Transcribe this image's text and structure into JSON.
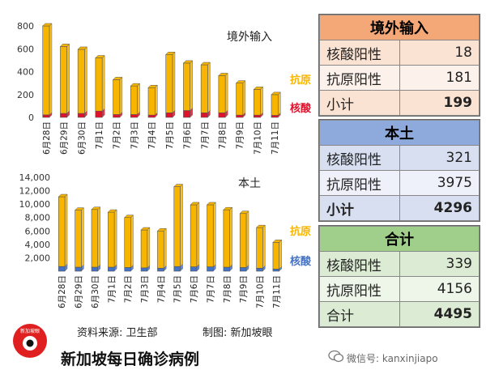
{
  "chart_data": [
    {
      "type": "bar",
      "stacked": true,
      "title": "境外输入",
      "categories": [
        "6月28日",
        "6月29日",
        "6月30日",
        "7月1日",
        "7月2日",
        "7月3日",
        "7月4日",
        "7月5日",
        "7月6日",
        "7月7日",
        "7月8日",
        "7月9日",
        "7月10日",
        "7月11日"
      ],
      "series": [
        {
          "name": "核酸",
          "color": "#e0112b",
          "values": [
            22,
            35,
            35,
            55,
            25,
            25,
            20,
            40,
            60,
            40,
            40,
            20,
            20,
            18
          ]
        },
        {
          "name": "抗原",
          "color": "#f7b500",
          "values": [
            778,
            585,
            560,
            465,
            305,
            250,
            240,
            510,
            415,
            420,
            325,
            280,
            225,
            181
          ]
        }
      ],
      "ylim": [
        0,
        800
      ],
      "yticks": [
        0,
        200,
        400,
        600,
        800
      ],
      "ytick_labels": [
        "0",
        "200",
        "400",
        "600",
        "800"
      ],
      "grid": false,
      "legend": "right"
    },
    {
      "type": "bar",
      "stacked": true,
      "title": "本土",
      "categories": [
        "6月28日",
        "6月29日",
        "6月30日",
        "7月1日",
        "7月2日",
        "7月3日",
        "7月4日",
        "7月5日",
        "7月6日",
        "7月7日",
        "7月8日",
        "7月9日",
        "7月10日",
        "7月11日"
      ],
      "series": [
        {
          "name": "核酸",
          "color": "#4472c4",
          "values": [
            700,
            600,
            600,
            600,
            550,
            500,
            450,
            700,
            650,
            650,
            600,
            550,
            450,
            321
          ]
        },
        {
          "name": "抗原",
          "color": "#f7b500",
          "values": [
            10400,
            8500,
            8600,
            8200,
            7450,
            5650,
            5550,
            11900,
            9250,
            9250,
            8550,
            8050,
            6050,
            3975
          ]
        }
      ],
      "ylim": [
        0,
        14000
      ],
      "yticks": [
        0,
        2000,
        4000,
        6000,
        8000,
        10000,
        12000,
        14000
      ],
      "ytick_labels": [
        "",
        "2,000",
        "4,000",
        "6,000",
        "8,000",
        "10,000",
        "12,000",
        "14,000"
      ],
      "grid": false,
      "legend": "right"
    }
  ],
  "tables": {
    "imported": {
      "header": "境外输入",
      "rows": [
        {
          "label": "核酸阳性",
          "value": "18"
        },
        {
          "label": "抗原阳性",
          "value": "181"
        }
      ],
      "subtotal_label": "小计",
      "subtotal_value": "199"
    },
    "local": {
      "header": "本土",
      "rows": [
        {
          "label": "核酸阳性",
          "value": "321"
        },
        {
          "label": "抗原阳性",
          "value": "3975"
        }
      ],
      "subtotal_label": "小计",
      "subtotal_value": "4296"
    },
    "total": {
      "header": "合计",
      "rows": [
        {
          "label": "核酸阳性",
          "value": "339"
        },
        {
          "label": "抗原阳性",
          "value": "4156"
        }
      ],
      "subtotal_label": "合计",
      "subtotal_value": "4495"
    }
  },
  "footer": {
    "source": "资料来源:  卫生部",
    "credit": "制图:   新加坡眼",
    "title": "新加坡每日确诊病例",
    "watermark": "微信号: kanxinjiapo",
    "logo_text": "新加坡眼"
  }
}
